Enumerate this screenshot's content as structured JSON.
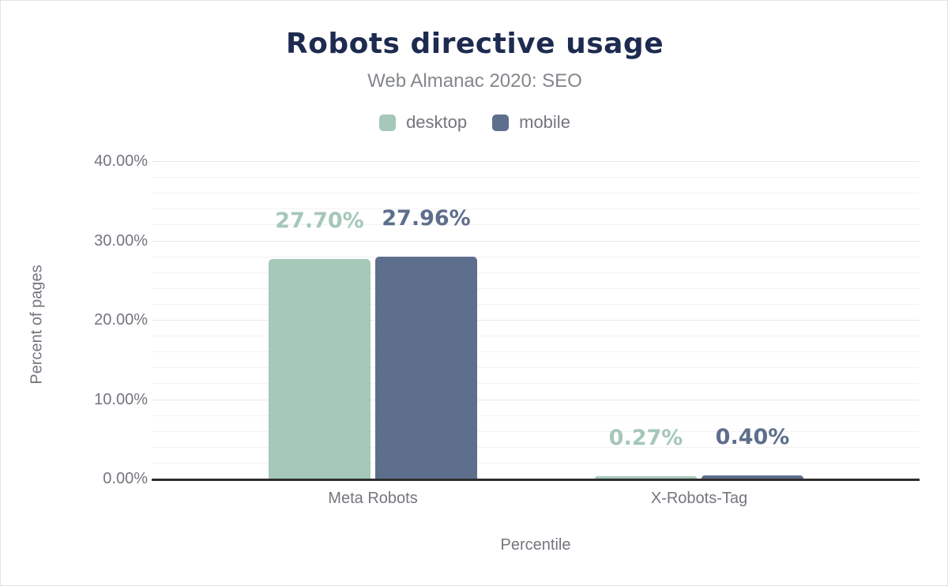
{
  "header": {
    "title": "Robots directive usage",
    "subtitle": "Web Almanac 2020: SEO"
  },
  "colors": {
    "title": "#1e2b50",
    "axis_text": "#75757e",
    "desktop": "#a5c8b8",
    "mobile": "#5e6e8d",
    "baseline": "#2e2e2e",
    "gridline_minor": "#f2f2f2",
    "gridline_major": "#e7e7e7"
  },
  "chart_data": {
    "type": "bar",
    "title": "Robots directive usage",
    "subtitle": "Web Almanac 2020: SEO",
    "categories": [
      "Meta Robots",
      "X-Robots-Tag"
    ],
    "series": [
      {
        "name": "desktop",
        "color": "#a5c8b8",
        "values": [
          27.7,
          0.27
        ],
        "value_labels": [
          "27.70%",
          "0.27%"
        ]
      },
      {
        "name": "mobile",
        "color": "#5e6e8d",
        "values": [
          27.96,
          0.4
        ],
        "value_labels": [
          "27.96%",
          "0.40%"
        ]
      }
    ],
    "xlabel": "Percentile",
    "ylabel": "Percent of pages",
    "ylim": [
      0,
      40
    ],
    "yticks": [
      {
        "value": 0,
        "label": "0.00%"
      },
      {
        "value": 10,
        "label": "10.00%"
      },
      {
        "value": 20,
        "label": "20.00%"
      },
      {
        "value": 30,
        "label": "30.00%"
      },
      {
        "value": 40,
        "label": "40.00%"
      }
    ],
    "minor_grid_step_percent": 2,
    "grid": true,
    "legend_position": "top"
  }
}
